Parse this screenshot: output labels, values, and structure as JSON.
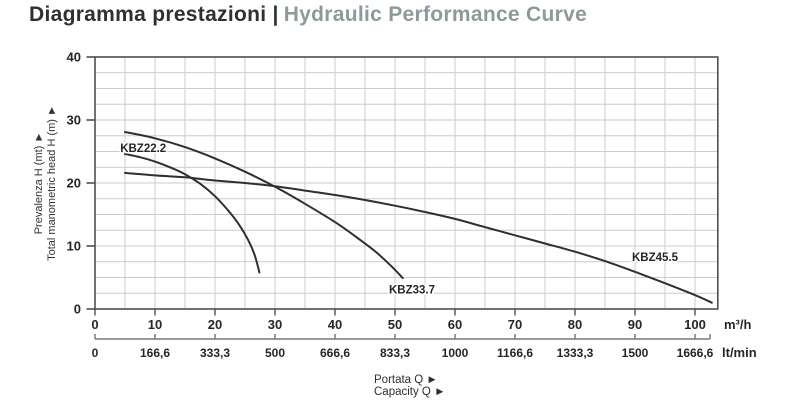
{
  "header": {
    "title_primary": "Diagramma prestazioni |",
    "title_secondary": "Hydraulic Performance Curve",
    "primary_color": "#2d3134",
    "secondary_color": "#8d9a9c"
  },
  "chart_data": {
    "type": "line",
    "title": "Diagramma prestazioni | Hydraulic Performance Curve",
    "y_axis": {
      "label_line1": "Prevalenza H (mt) ►",
      "label_line2": "Total manometric head H (m) ►",
      "ticks": [
        0,
        10,
        20,
        30,
        40
      ],
      "range": [
        0,
        40
      ],
      "minor_grid_step": 2.5
    },
    "x_axis_primary": {
      "unit": "m³/h",
      "ticks": [
        0,
        10,
        20,
        30,
        40,
        50,
        60,
        70,
        80,
        90,
        100
      ],
      "range": [
        0,
        103.8
      ],
      "minor_grid_step": 5
    },
    "x_axis_secondary": {
      "unit": "lt/min",
      "tick_labels": [
        "0",
        "166,6",
        "333,3",
        "500",
        "666,6",
        "833,3",
        "1000",
        "1166,6",
        "1333,3",
        "1500",
        "1666,6"
      ]
    },
    "x_title": {
      "line1": "Portata Q ►",
      "line2": "Capacity Q ►"
    },
    "grid": true,
    "legend": "inline-labels",
    "series": [
      {
        "name": "KBZ22.2",
        "label_at": {
          "x": 4.2,
          "y": 24.9
        },
        "points": [
          [
            5,
            24.6
          ],
          [
            7.5,
            24.1
          ],
          [
            10,
            23.4
          ],
          [
            12.5,
            22.5
          ],
          [
            15,
            21.4
          ],
          [
            17.5,
            19.9
          ],
          [
            20,
            17.9
          ],
          [
            22.5,
            15.3
          ],
          [
            24,
            13.4
          ],
          [
            25.5,
            11.0
          ],
          [
            26.6,
            8.6
          ],
          [
            27.4,
            5.8
          ]
        ]
      },
      {
        "name": "KBZ33.7",
        "label_at": {
          "x": 49.0,
          "y": 2.5
        },
        "points": [
          [
            5,
            28.1
          ],
          [
            10,
            27.1
          ],
          [
            15,
            25.7
          ],
          [
            20,
            23.9
          ],
          [
            25,
            21.8
          ],
          [
            30,
            19.4
          ],
          [
            35,
            16.7
          ],
          [
            40,
            13.8
          ],
          [
            44,
            11.1
          ],
          [
            47,
            8.9
          ],
          [
            49.5,
            6.7
          ],
          [
            51.3,
            4.9
          ]
        ]
      },
      {
        "name": "KBZ45.5",
        "label_at": {
          "x": 89.5,
          "y": 7.6
        },
        "points": [
          [
            5,
            21.6
          ],
          [
            10,
            21.2
          ],
          [
            15,
            20.9
          ],
          [
            20,
            20.4
          ],
          [
            25,
            20.0
          ],
          [
            30,
            19.5
          ],
          [
            35,
            18.8
          ],
          [
            40,
            18.1
          ],
          [
            45,
            17.3
          ],
          [
            50,
            16.4
          ],
          [
            55,
            15.4
          ],
          [
            60,
            14.3
          ],
          [
            65,
            13.0
          ],
          [
            70,
            11.7
          ],
          [
            75,
            10.4
          ],
          [
            80,
            9.1
          ],
          [
            85,
            7.6
          ],
          [
            90,
            5.9
          ],
          [
            95,
            4.1
          ],
          [
            100,
            2.2
          ],
          [
            102.8,
            1.0
          ]
        ]
      }
    ],
    "colors": {
      "curve": "#2f2f2f",
      "grid": "#cbcbcb",
      "plot_border": "#4f4f4f",
      "axis_text": "#262626",
      "secondary_axis": "#7a7a7a"
    }
  }
}
